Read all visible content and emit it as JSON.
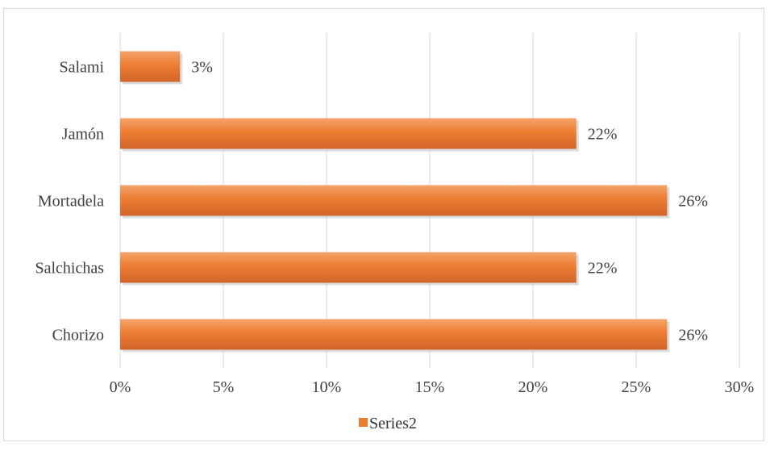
{
  "chart_data": {
    "type": "bar",
    "orientation": "horizontal",
    "categories": [
      "Chorizo",
      "Salchichas",
      "Mortadela",
      "Jamón",
      "Salami"
    ],
    "series": [
      {
        "name": "Series2",
        "values": [
          26.5,
          22.1,
          26.5,
          22.1,
          2.9
        ],
        "data_labels": [
          "26%",
          "22%",
          "26%",
          "22%",
          "3%"
        ],
        "color": "#ed7d31"
      }
    ],
    "xlim": [
      0,
      30
    ],
    "x_ticks": [
      0,
      5,
      10,
      15,
      20,
      25,
      30
    ],
    "x_tick_labels": [
      "0%",
      "5%",
      "10%",
      "15%",
      "20%",
      "25%",
      "30%"
    ],
    "title": "",
    "xlabel": "",
    "ylabel": "",
    "grid": "vertical",
    "legend": {
      "position": "bottom",
      "entries": [
        "Series2"
      ]
    },
    "colors": {
      "bar": "#ed7d31",
      "bar_light": "#f4a36c",
      "bar_dark": "#d1652a",
      "grid": "#d9d9d9",
      "text": "#404040"
    }
  }
}
